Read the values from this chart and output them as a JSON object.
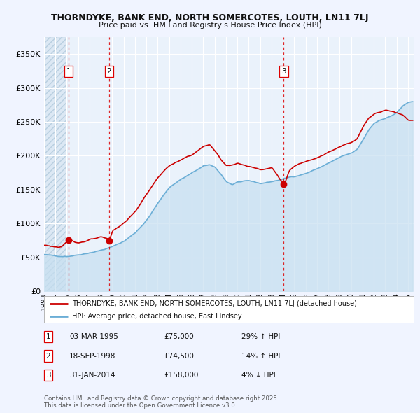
{
  "title_line1": "THORNDYKE, BANK END, NORTH SOMERCOTES, LOUTH, LN11 7LJ",
  "title_line2": "Price paid vs. HM Land Registry's House Price Index (HPI)",
  "xlim_start": 1993.0,
  "xlim_end": 2025.5,
  "ylim": [
    0,
    375000
  ],
  "yticks": [
    0,
    50000,
    100000,
    150000,
    200000,
    250000,
    300000,
    350000
  ],
  "ytick_labels": [
    "£0",
    "£50K",
    "£100K",
    "£150K",
    "£200K",
    "£250K",
    "£300K",
    "£350K"
  ],
  "background_color": "#f0f4ff",
  "plot_bg_color": "#eaf2fb",
  "hatch_bg_color": "#dce8f4",
  "grid_color": "#ffffff",
  "sale_color": "#cc0000",
  "hpi_color": "#6baed6",
  "hpi_fill_color": "#c6dff0",
  "vline_color": "#dd0000",
  "purchases": [
    {
      "label": 1,
      "year_decimal": 1995.17,
      "price": 75000,
      "date": "03-MAR-1995",
      "pct": "29%",
      "dir": "↑",
      "text": "£75,000"
    },
    {
      "label": 2,
      "year_decimal": 1998.72,
      "price": 74500,
      "date": "18-SEP-1998",
      "pct": "14%",
      "dir": "↑",
      "text": "£74,500"
    },
    {
      "label": 3,
      "year_decimal": 2014.08,
      "price": 158000,
      "date": "31-JAN-2014",
      "pct": "4%",
      "dir": "↓",
      "text": "£158,000"
    }
  ],
  "footnote": "Contains HM Land Registry data © Crown copyright and database right 2025.\nThis data is licensed under the Open Government Licence v3.0.",
  "legend1": "THORNDYKE, BANK END, NORTH SOMERCOTES, LOUTH, LN11 7LJ (detached house)",
  "legend2": "HPI: Average price, detached house, East Lindsey"
}
